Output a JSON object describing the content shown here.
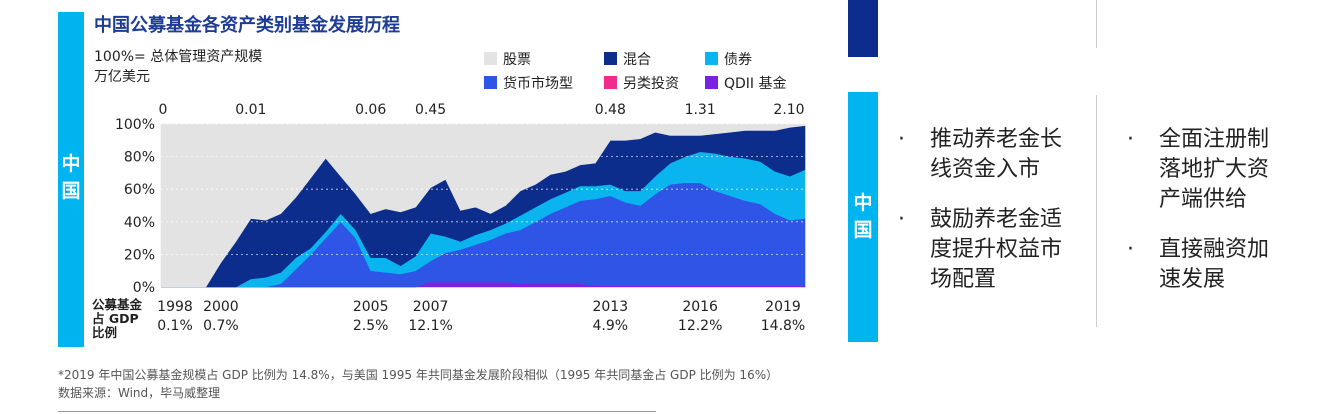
{
  "left_panel": {
    "side_label": [
      "中",
      "国"
    ],
    "title": "中国公募基金各资产类别基金发展历程",
    "subtitle_1": "100%= 总体管理资产规模",
    "subtitle_2": "万亿美元",
    "legend": [
      {
        "name": "股票",
        "color": "#e3e3e3"
      },
      {
        "name": "混合",
        "color": "#0c2d8c"
      },
      {
        "name": "债券",
        "color": "#0ab4ef"
      },
      {
        "name": "货币市场型",
        "color": "#2f55e6"
      },
      {
        "name": "另类投资",
        "color": "#ef2c8c"
      },
      {
        "name": "QDII 基金",
        "color": "#7a22e0"
      }
    ],
    "gdp_row_label": [
      "公募基金",
      "占 GDP",
      "比例"
    ],
    "footnote": "*2019 年中国公募基金规模占 GDP 比例为 14.8%，与美国 1995 年共同基金发展阶段相似（1995 年共同基金占 GDP 比例为 16%）",
    "source": "数据来源：Wind，毕马威整理"
  },
  "chart_data": {
    "type": "area",
    "stacked": true,
    "percent": true,
    "x": [
      1998.0,
      1998.5,
      1999.0,
      1999.5,
      2000.0,
      2000.5,
      2001.0,
      2001.5,
      2002.0,
      2002.5,
      2003.0,
      2003.5,
      2004.0,
      2004.5,
      2005.0,
      2005.5,
      2006.0,
      2006.5,
      2007.0,
      2007.5,
      2008.0,
      2008.5,
      2009.0,
      2009.5,
      2010.0,
      2010.5,
      2011.0,
      2011.5,
      2012.0,
      2012.5,
      2013.0,
      2013.5,
      2014.0,
      2014.5,
      2015.0,
      2015.5,
      2016.0,
      2016.5,
      2017.0,
      2017.5,
      2018.0,
      2018.5,
      2019.0,
      2019.5
    ],
    "series": [
      {
        "name": "QDII 基金",
        "color": "#7a22e0",
        "values": [
          0,
          0,
          0,
          0,
          0,
          0,
          0,
          0,
          0,
          0,
          0,
          0,
          0,
          0,
          0,
          0,
          0,
          0,
          3,
          3,
          3,
          3,
          3,
          3,
          2,
          2,
          2,
          2,
          2,
          1,
          1,
          1,
          1,
          1,
          1,
          1,
          1,
          1,
          1,
          1,
          1,
          1,
          1,
          1
        ]
      },
      {
        "name": "另类投资",
        "color": "#ef2c8c",
        "values": [
          0,
          0,
          0,
          0,
          0,
          0,
          0,
          0,
          0,
          0,
          0,
          0,
          0,
          0,
          0,
          0,
          0,
          0,
          0,
          0,
          0,
          0,
          0,
          0,
          0,
          0,
          0,
          0,
          0,
          0,
          0,
          0,
          0,
          0,
          0,
          0,
          0,
          0,
          0,
          0,
          0,
          0,
          0,
          0
        ]
      },
      {
        "name": "货币市场型",
        "color": "#2f55e6",
        "values": [
          0,
          0,
          0,
          0,
          0,
          0,
          0,
          0,
          2,
          11,
          20,
          30,
          40,
          30,
          10,
          9,
          8,
          10,
          13,
          18,
          20,
          23,
          26,
          30,
          33,
          38,
          43,
          47,
          51,
          53,
          55,
          51,
          49,
          56,
          62,
          63,
          63,
          58,
          55,
          52,
          50,
          44,
          40,
          41
        ]
      },
      {
        "name": "债券",
        "color": "#0ab4ef",
        "values": [
          0,
          0,
          0,
          0,
          0,
          0,
          5,
          6,
          7,
          7,
          4,
          4,
          5,
          5,
          8,
          9,
          5,
          9,
          17,
          10,
          5,
          6,
          6,
          6,
          9,
          9,
          9,
          9,
          9,
          8,
          7,
          7,
          9,
          11,
          13,
          16,
          19,
          23,
          24,
          26,
          26,
          26,
          27,
          30
        ]
      },
      {
        "name": "混合",
        "color": "#0c2d8c",
        "values": [
          0,
          0,
          0,
          0,
          15,
          28,
          37,
          35,
          36,
          37,
          43,
          45,
          23,
          22,
          27,
          30,
          33,
          30,
          28,
          35,
          19,
          17,
          10,
          11,
          15,
          14,
          15,
          13,
          13,
          14,
          27,
          31,
          32,
          27,
          17,
          13,
          10,
          12,
          15,
          17,
          19,
          25,
          30,
          27
        ]
      },
      {
        "name": "股票",
        "color": "#e3e3e3",
        "values": [
          100,
          100,
          100,
          100,
          85,
          72,
          58,
          59,
          55,
          45,
          33,
          21,
          32,
          43,
          55,
          52,
          54,
          51,
          39,
          34,
          53,
          51,
          55,
          50,
          41,
          37,
          31,
          29,
          25,
          24,
          10,
          10,
          9,
          5,
          7,
          7,
          7,
          6,
          5,
          4,
          4,
          4,
          2,
          1
        ]
      }
    ],
    "top_labels": [
      {
        "x": 1998,
        "label": "0"
      },
      {
        "x": 2001,
        "label": "0.01"
      },
      {
        "x": 2005,
        "label": "0.06"
      },
      {
        "x": 2007,
        "label": "0.45"
      },
      {
        "x": 2013,
        "label": "0.48"
      },
      {
        "x": 2016,
        "label": "1.31"
      },
      {
        "x": 2019,
        "label": "2.10"
      }
    ],
    "year_labels": [
      {
        "x": 1998,
        "label": "1998",
        "gdp": "0.1%"
      },
      {
        "x": 2000,
        "label": "2000",
        "gdp": "0.7%"
      },
      {
        "x": 2005,
        "label": "2005",
        "gdp": "2.5%"
      },
      {
        "x": 2007,
        "label": "2007",
        "gdp": "12.1%"
      },
      {
        "x": 2013,
        "label": "2013",
        "gdp": "4.9%"
      },
      {
        "x": 2016,
        "label": "2016",
        "gdp": "12.2%"
      },
      {
        "x": 2019,
        "label": "2019",
        "gdp": "14.8%"
      }
    ],
    "y_ticks": [
      "0%",
      "20%",
      "40%",
      "60%",
      "80%",
      "100%"
    ],
    "ylim": [
      0,
      100
    ],
    "xlim": [
      1998,
      2019.5
    ],
    "grid": true
  },
  "right_panel": {
    "side_label": [
      "中",
      "国"
    ],
    "column_1": [
      [
        "推动养老金长",
        "线资金入市"
      ],
      [
        "鼓励养老金适",
        "度提升权益市",
        "场配置"
      ]
    ],
    "column_2": [
      [
        "全面注册制",
        "落地扩大资",
        "产端供给"
      ],
      [
        "直接融资加",
        "速发展"
      ]
    ],
    "bullet_symbol": "·"
  }
}
